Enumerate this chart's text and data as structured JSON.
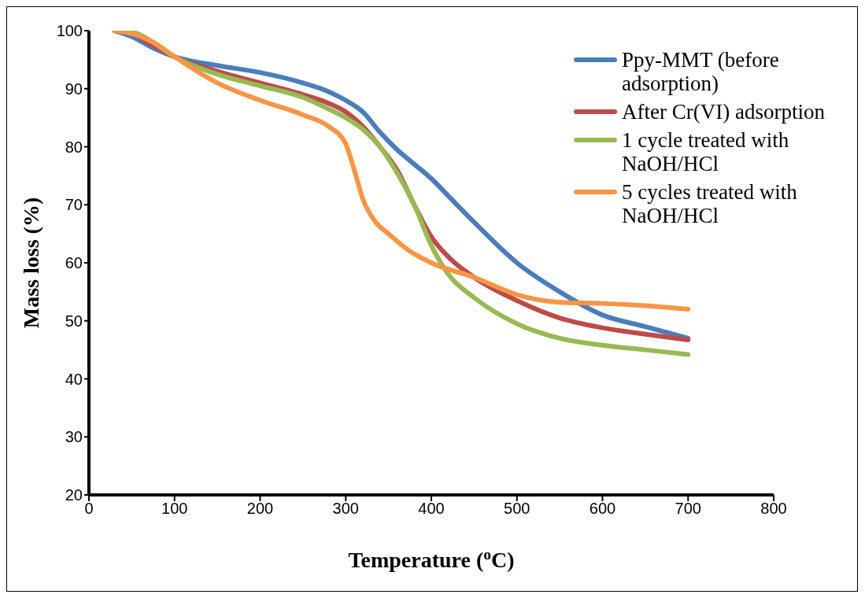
{
  "chart_data": {
    "type": "line",
    "xlabel": "Temperature ($^{o}$C)",
    "ylabel": "Mass loss (%)",
    "xlim": [
      0,
      800
    ],
    "xticks": [
      0,
      100,
      200,
      300,
      400,
      500,
      600,
      700,
      800
    ],
    "ylim": [
      20,
      100
    ],
    "yticks": [
      20,
      30,
      40,
      50,
      60,
      70,
      80,
      90,
      100
    ],
    "grid": false,
    "legend": "top right",
    "marker": "none",
    "line_style": "solid",
    "series": [
      {
        "name": "Ppy-MMT (before adsorption)",
        "color": "#4a7ebb",
        "x": [
          30,
          50,
          75,
          100,
          150,
          200,
          250,
          280,
          300,
          320,
          340,
          360,
          380,
          400,
          420,
          450,
          500,
          550,
          600,
          650,
          700
        ],
        "values": [
          100,
          99,
          97,
          95.5,
          94,
          92.8,
          91,
          89.5,
          88,
          86,
          82.5,
          79.5,
          77,
          74.5,
          71.5,
          67,
          60,
          55,
          51,
          49,
          47
        ]
      },
      {
        "name": "After Cr(VI) adsorption",
        "color": "#be4b48",
        "x": [
          30,
          50,
          75,
          100,
          150,
          200,
          250,
          280,
          300,
          320,
          340,
          360,
          380,
          400,
          420,
          450,
          500,
          550,
          600,
          650,
          700
        ],
        "values": [
          100,
          99.5,
          97.5,
          95.5,
          93,
          91,
          89,
          87.5,
          86,
          83.5,
          80,
          76,
          70,
          64.5,
          61,
          57.5,
          53.5,
          50.5,
          48.8,
          47.7,
          46.7
        ]
      },
      {
        "name": "1 cycle treated with NaOH/HCl",
        "color": "#98b954",
        "x": [
          30,
          50,
          75,
          100,
          150,
          200,
          250,
          280,
          300,
          320,
          340,
          360,
          380,
          400,
          420,
          450,
          500,
          550,
          600,
          650,
          700
        ],
        "values": [
          100,
          99.8,
          98,
          95.5,
          92.5,
          90.5,
          88.5,
          86.5,
          85,
          83,
          80,
          75.5,
          70,
          63,
          58,
          54,
          49.5,
          47,
          45.8,
          45,
          44.2
        ]
      },
      {
        "name": "5 cycles treated with NaOH/HCl",
        "color": "#f79646",
        "x": [
          30,
          50,
          75,
          100,
          150,
          200,
          250,
          280,
          300,
          310,
          320,
          335,
          350,
          375,
          400,
          450,
          500,
          550,
          600,
          650,
          700
        ],
        "values": [
          100,
          99.5,
          98,
          95.5,
          91,
          88,
          85.5,
          83.5,
          80.5,
          76,
          71,
          67,
          65,
          62,
          60,
          57.5,
          54.5,
          53.2,
          53,
          52.6,
          52
        ]
      }
    ]
  }
}
